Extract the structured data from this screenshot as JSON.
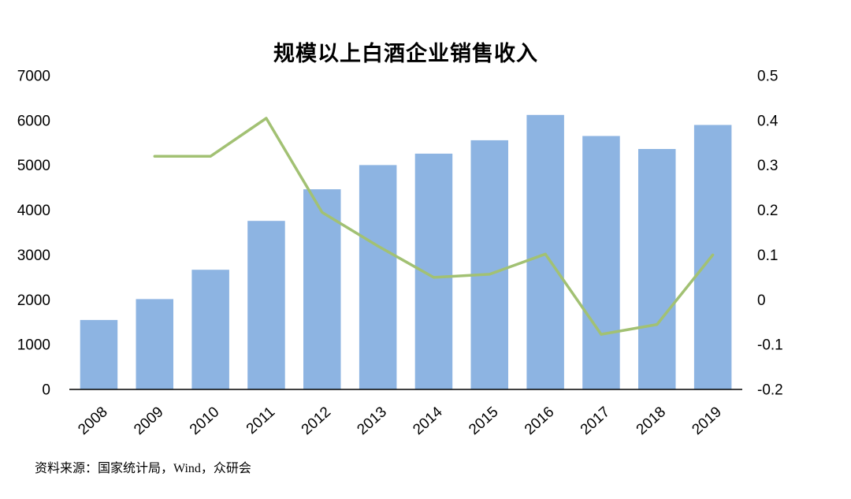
{
  "source_note": "资料来源：国家统计局，Wind，众研会",
  "colors": {
    "background": "#FFFFFF",
    "bar": "#8DB4E2",
    "line": "#A2C173",
    "axis_line": "#000000",
    "text": "#000000"
  },
  "chart_data": {
    "type": "combo",
    "title": "规模以上白酒企业销售收入",
    "categories": [
      "2008",
      "2009",
      "2010",
      "2011",
      "2012",
      "2013",
      "2014",
      "2015",
      "2016",
      "2017",
      "2018",
      "2019"
    ],
    "series": [
      {
        "name": "bar-series",
        "type": "bar",
        "y_axis": "left",
        "values": [
          1550,
          2015,
          2670,
          3760,
          4465,
          5005,
          5260,
          5560,
          6125,
          5655,
          5365,
          5900
        ]
      },
      {
        "name": "line-series",
        "type": "line",
        "y_axis": "right",
        "values": [
          null,
          0.32,
          0.32,
          0.405,
          0.195,
          0.12,
          0.05,
          0.057,
          0.102,
          -0.077,
          -0.055,
          0.1
        ]
      }
    ],
    "left_axis": {
      "min": 0,
      "max": 7000,
      "tick_values": [
        7000,
        6000,
        5000,
        4000,
        3000,
        2000,
        1000,
        0
      ],
      "tick_labels": [
        "7000",
        "6000",
        "5000",
        "4000",
        "3000",
        "2000",
        "1000",
        "0"
      ]
    },
    "right_axis": {
      "min": -0.2,
      "max": 0.5,
      "tick_values": [
        0.5,
        0.4,
        0.3,
        0.2,
        0.1,
        0,
        -0.1,
        -0.2
      ],
      "tick_labels": [
        "0.5",
        "0.4",
        "0.3",
        "0.2",
        "0.1",
        "0",
        "-0.1",
        "-0.2"
      ]
    },
    "grid": false,
    "legend": "none",
    "xlabel": "",
    "ylabel_left": "",
    "ylabel_right": ""
  }
}
